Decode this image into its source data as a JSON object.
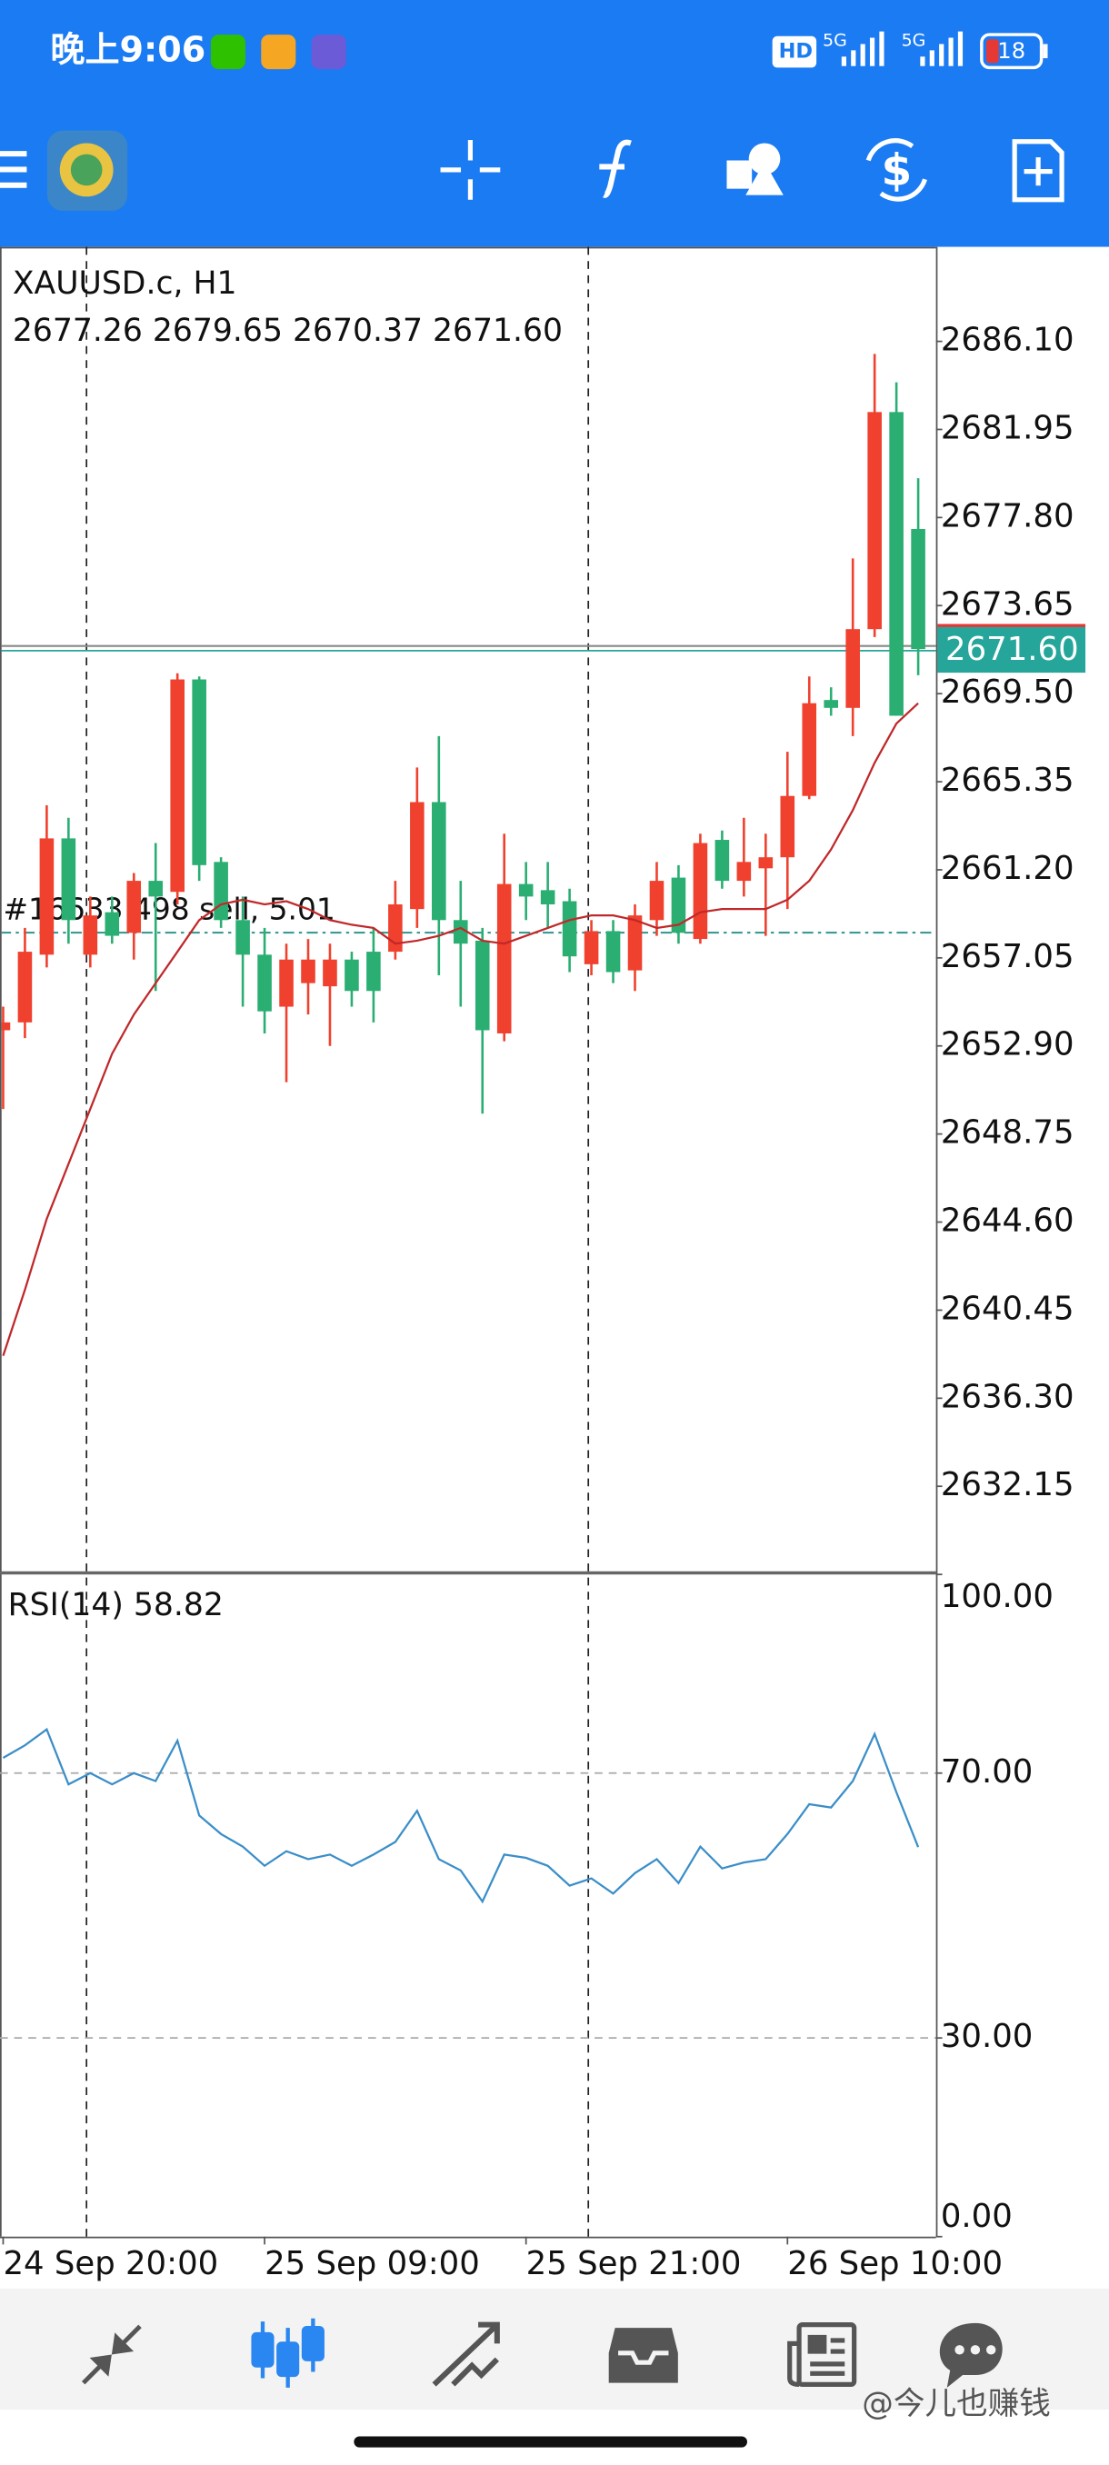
{
  "status_bar": {
    "time": "晚上9:06",
    "hd": "HD",
    "net1": "5G",
    "net2": "5G",
    "battery": "18"
  },
  "chart_data": [
    {
      "type": "candlestick",
      "title": "XAUUSD.c, H1",
      "quote": "2677.26 2679.65 2670.37 2671.60",
      "categories": [
        "24 Sep 20:00",
        null,
        null,
        null,
        null,
        null,
        null,
        null,
        null,
        null,
        null,
        null,
        "25 Sep 09:00",
        null,
        null,
        null,
        null,
        null,
        null,
        null,
        null,
        null,
        null,
        null,
        "25 Sep 21:00",
        null,
        null,
        null,
        null,
        null,
        null,
        null,
        null,
        null,
        null,
        null,
        "26 Sep 10:00",
        null,
        null,
        null,
        null,
        null,
        null
      ],
      "open": [
        2653.64,
        2654.01,
        2657.2,
        2662.68,
        2657.2,
        2659.2,
        2658.23,
        2660.68,
        2660.16,
        2670.17,
        2661.57,
        2658.83,
        2657.2,
        2654.75,
        2655.86,
        2655.71,
        2656.97,
        2657.34,
        2657.34,
        2659.35,
        2664.39,
        2658.83,
        2657.86,
        2653.49,
        2660.53,
        2660.24,
        2659.72,
        2656.75,
        2658.31,
        2656.46,
        2658.83,
        2660.83,
        2657.94,
        2662.61,
        2660.68,
        2661.27,
        2661.79,
        2664.68,
        2669.2,
        2668.83,
        2672.54,
        2682.77,
        2677.26
      ],
      "high": [
        2654.75,
        2658.46,
        2664.24,
        2663.65,
        2659.94,
        2659.94,
        2661.05,
        2662.46,
        2670.46,
        2670.31,
        2661.79,
        2659.94,
        2658.46,
        2657.72,
        2657.94,
        2657.72,
        2657.34,
        2658.46,
        2660.68,
        2666.02,
        2667.5,
        2660.68,
        2658.46,
        2662.9,
        2661.57,
        2661.57,
        2660.31,
        2658.83,
        2658.83,
        2659.57,
        2661.57,
        2661.42,
        2662.9,
        2663.05,
        2663.65,
        2662.9,
        2666.76,
        2670.31,
        2669.8,
        2675.87,
        2685.51,
        2684.17,
        2679.65
      ],
      "low": [
        2649.93,
        2653.27,
        2656.6,
        2657.72,
        2656.6,
        2657.72,
        2656.97,
        2655.49,
        2659.57,
        2660.68,
        2658.46,
        2654.75,
        2653.49,
        2651.19,
        2654.38,
        2652.9,
        2654.75,
        2654.01,
        2656.97,
        2658.46,
        2656.23,
        2654.75,
        2649.71,
        2653.12,
        2658.83,
        2658.46,
        2656.38,
        2656.23,
        2655.86,
        2655.49,
        2658.09,
        2657.72,
        2657.72,
        2660.31,
        2659.94,
        2658.09,
        2659.35,
        2664.53,
        2668.46,
        2667.5,
        2672.17,
        2668.46,
        2670.37
      ],
      "close": [
        2654.01,
        2657.34,
        2662.68,
        2658.83,
        2659.05,
        2658.09,
        2660.68,
        2659.94,
        2670.17,
        2661.42,
        2658.83,
        2657.2,
        2654.53,
        2656.97,
        2656.97,
        2656.97,
        2655.49,
        2655.49,
        2659.57,
        2664.39,
        2658.83,
        2657.72,
        2653.64,
        2660.53,
        2659.94,
        2659.57,
        2657.12,
        2658.31,
        2656.38,
        2659.05,
        2660.68,
        2658.23,
        2662.46,
        2660.68,
        2661.57,
        2661.79,
        2664.68,
        2669.05,
        2668.83,
        2672.54,
        2682.77,
        2668.46,
        2671.6
      ],
      "up_color": "#f0402e",
      "down_color": "#2aae72",
      "ma": {
        "color": "#c0282a",
        "values": [
          2638.3,
          2641.41,
          2644.75,
          2647.34,
          2649.93,
          2652.53,
          2654.38,
          2655.86,
          2657.34,
          2658.83,
          2659.57,
          2659.79,
          2659.57,
          2659.72,
          2659.35,
          2658.83,
          2658.61,
          2658.46,
          2657.72,
          2657.86,
          2658.09,
          2658.46,
          2657.86,
          2657.72,
          2658.09,
          2658.46,
          2658.83,
          2659.05,
          2659.05,
          2658.83,
          2658.46,
          2658.61,
          2659.2,
          2659.35,
          2659.35,
          2659.35,
          2659.79,
          2660.68,
          2662.16,
          2664.01,
          2666.24,
          2668.09,
          2669.05
        ]
      },
      "bid": {
        "value": 2671.6,
        "label": "2671.60",
        "color": "#26a69a"
      },
      "order": {
        "value": 2658.24,
        "label": "#16633 498 sell, 5.01",
        "color": "#3a9a94"
      },
      "ylim": [
        2628.07,
        2690.55
      ],
      "yticks": [
        {
          "value": 2686.1,
          "label": "2686.10"
        },
        {
          "value": 2681.95,
          "label": "2681.95"
        },
        {
          "value": 2677.8,
          "label": "2677.80"
        },
        {
          "value": 2673.65,
          "label": "2673.65"
        },
        {
          "value": 2669.5,
          "label": "2669.50"
        },
        {
          "value": 2665.35,
          "label": "2665.35"
        },
        {
          "value": 2661.2,
          "label": "2661.20"
        },
        {
          "value": 2657.05,
          "label": "2657.05"
        },
        {
          "value": 2652.9,
          "label": "2652.90"
        },
        {
          "value": 2648.75,
          "label": "2648.75"
        },
        {
          "value": 2644.6,
          "label": "2644.60"
        },
        {
          "value": 2640.45,
          "label": "2640.45"
        },
        {
          "value": 2636.3,
          "label": "2636.30"
        },
        {
          "value": 2632.15,
          "label": "2632.15"
        }
      ]
    },
    {
      "type": "line",
      "title": "RSI(14) 58.82",
      "color": "#3b8ec8",
      "values": [
        72.3,
        74.2,
        76.6,
        68.3,
        70.0,
        68.3,
        70.0,
        68.8,
        74.9,
        63.6,
        60.8,
        58.9,
        56.0,
        58.2,
        57.0,
        57.7,
        56.0,
        57.7,
        59.6,
        64.3,
        57.0,
        55.3,
        50.6,
        57.7,
        57.2,
        56.0,
        53.0,
        54.1,
        51.8,
        54.9,
        57.0,
        53.4,
        58.9,
        55.6,
        56.5,
        57.0,
        60.8,
        65.3,
        64.8,
        68.8,
        75.9,
        67.1,
        58.82
      ],
      "ylim": [
        0,
        100
      ],
      "yticks": [
        {
          "value": 100,
          "label": "100.00"
        },
        {
          "value": 70,
          "label": "70.00"
        },
        {
          "value": 30,
          "label": "30.00"
        },
        {
          "value": 0,
          "label": "0.00"
        }
      ],
      "levels": [
        70,
        30
      ]
    }
  ],
  "watermark": "@今儿也赚钱"
}
